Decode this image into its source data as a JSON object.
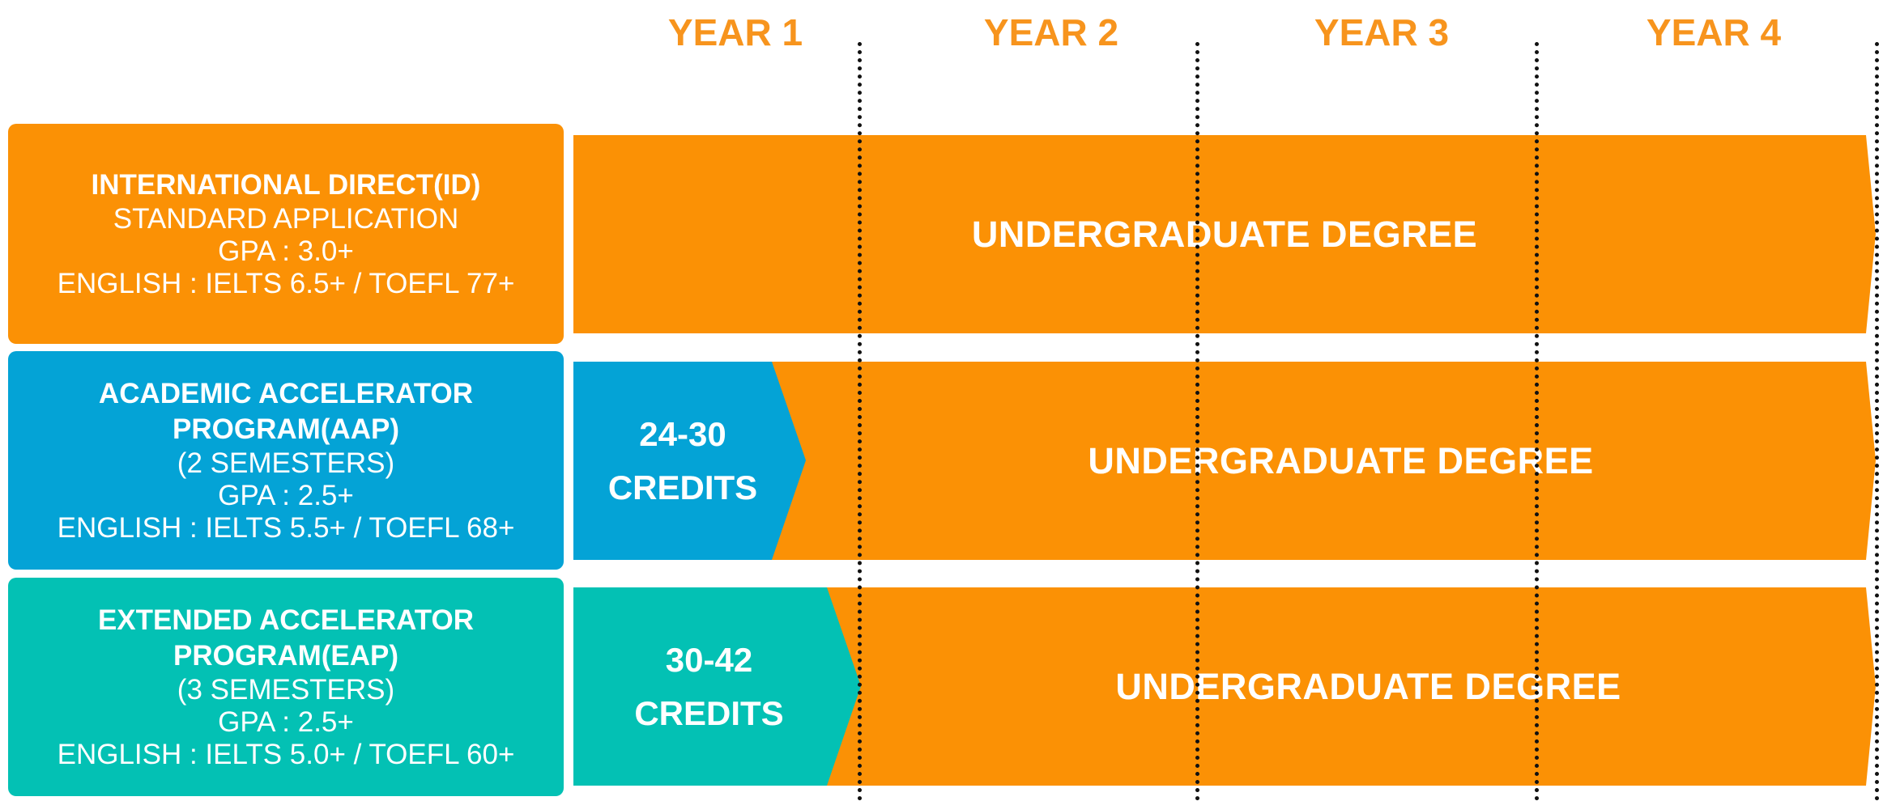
{
  "colors": {
    "orange": "#fb9105",
    "blue": "#04a3d6",
    "teal": "#03c1b4",
    "year_text": "#f7941d",
    "divider": "#111111"
  },
  "years": [
    "YEAR 1",
    "YEAR 2",
    "YEAR 3",
    "YEAR 4"
  ],
  "rows": [
    {
      "title_lines": [
        "INTERNATIONAL DIRECT(ID)"
      ],
      "detail_lines": [
        "STANDARD APPLICATION",
        "GPA : 3.0+",
        "ENGLISH : IELTS 6.5+ / TOEFL 77+"
      ],
      "credits": [],
      "degree": "UNDERGRADUATE DEGREE"
    },
    {
      "title_lines": [
        "ACADEMIC ACCELERATOR",
        "PROGRAM(AAP)"
      ],
      "detail_lines": [
        "(2 SEMESTERS)",
        "GPA : 2.5+",
        "ENGLISH : IELTS 5.5+ / TOEFL 68+"
      ],
      "credits": [
        "24-30",
        "CREDITS"
      ],
      "degree": "UNDERGRADUATE DEGREE"
    },
    {
      "title_lines": [
        "EXTENDED ACCELERATOR",
        "PROGRAM(EAP)"
      ],
      "detail_lines": [
        "(3 SEMESTERS)",
        "GPA : 2.5+",
        "ENGLISH : IELTS 5.0+ / TOEFL 60+"
      ],
      "credits": [
        "30-42",
        "CREDITS"
      ],
      "degree": "UNDERGRADUATE DEGREE"
    }
  ]
}
